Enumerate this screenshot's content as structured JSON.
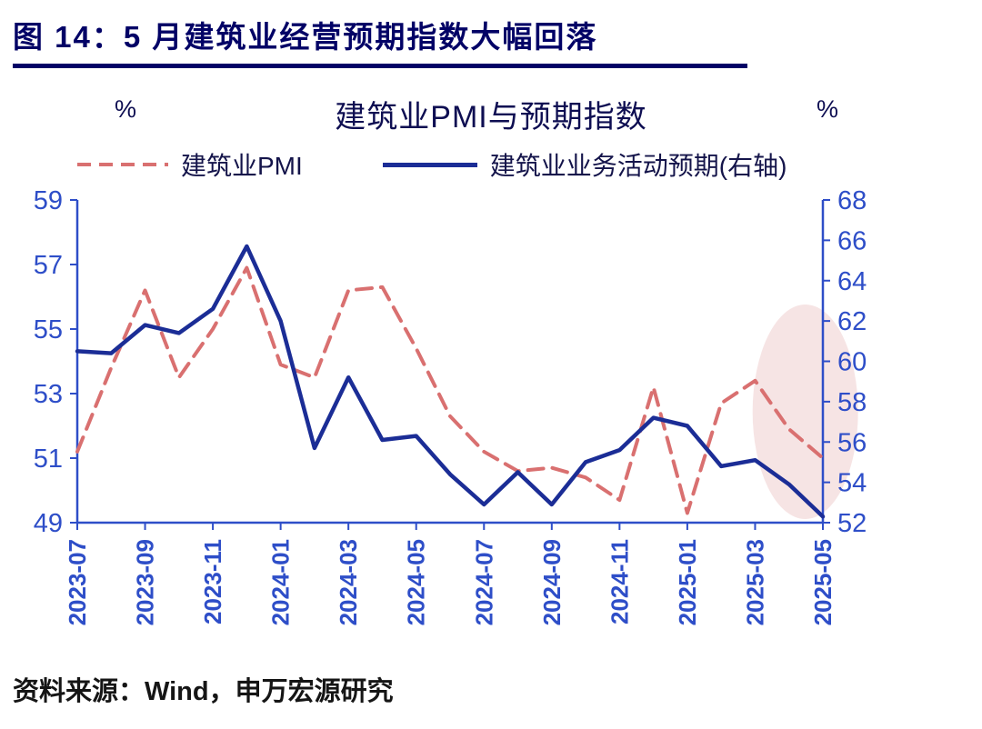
{
  "header": {
    "title": "图 14：5 月建筑业经营预期指数大幅回落",
    "accent_color": "#020266"
  },
  "chart_data": {
    "type": "line",
    "title": "建筑业PMI与预期指数",
    "left_axis_unit": "%",
    "right_axis_unit": "%",
    "axis_color": "#2E4EC8",
    "grid": false,
    "legend_position": "top",
    "x": [
      "2023-07",
      "2023-08",
      "2023-09",
      "2023-10",
      "2023-11",
      "2023-12",
      "2024-01",
      "2024-02",
      "2024-03",
      "2024-04",
      "2024-05",
      "2024-06",
      "2024-07",
      "2024-08",
      "2024-09",
      "2024-10",
      "2024-11",
      "2024-12",
      "2025-01",
      "2025-02",
      "2025-03",
      "2025-04",
      "2025-05"
    ],
    "x_tick_labels": [
      "2023-07",
      "2023-09",
      "2023-11",
      "2024-01",
      "2024-03",
      "2024-05",
      "2024-07",
      "2024-09",
      "2024-11",
      "2025-01",
      "2025-03",
      "2025-05"
    ],
    "left_axis": {
      "min": 49,
      "max": 59,
      "ticks": [
        59,
        57,
        55,
        53,
        51,
        49
      ]
    },
    "right_axis": {
      "min": 52,
      "max": 68,
      "ticks": [
        68,
        66,
        64,
        62,
        60,
        58,
        56,
        54,
        52
      ]
    },
    "series": [
      {
        "name": "建筑业PMI",
        "axis": "left",
        "style": "dashed",
        "color": "#D97070",
        "values": [
          51.2,
          53.8,
          56.2,
          53.5,
          55.0,
          56.9,
          53.9,
          53.5,
          56.2,
          56.3,
          54.4,
          52.3,
          51.2,
          50.6,
          50.7,
          50.4,
          49.7,
          53.2,
          49.3,
          52.7,
          53.4,
          51.9,
          51.0
        ]
      },
      {
        "name": "建筑业业务活动预期(右轴)",
        "axis": "right",
        "style": "solid",
        "color": "#1B2D96",
        "values": [
          60.5,
          60.4,
          61.8,
          61.4,
          62.6,
          65.7,
          62.0,
          55.7,
          59.2,
          56.1,
          56.3,
          54.4,
          52.9,
          54.5,
          52.9,
          55.0,
          55.6,
          57.2,
          56.8,
          54.8,
          55.1,
          53.9,
          52.3
        ]
      }
    ],
    "highlight": {
      "shape": "ellipse",
      "x_center": "2025-04",
      "color": "#F5E1E1"
    }
  },
  "footer": {
    "source": "资料来源：Wind，申万宏源研究"
  }
}
